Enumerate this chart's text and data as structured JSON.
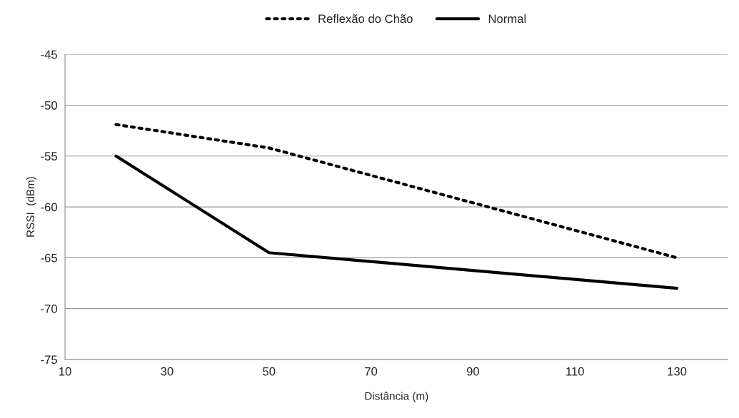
{
  "chart_data": {
    "type": "line",
    "xlabel": "Distância (m)",
    "ylabel": "RSSI  (dBm)",
    "x": [
      20,
      50,
      130
    ],
    "series": [
      {
        "name": "Reflexão do Chão",
        "color": "#000000",
        "values": [
          -51.9,
          -54.2,
          -65.0
        ],
        "line_style": "dotted"
      },
      {
        "name": "Normal",
        "color": "#000000",
        "values": [
          -55.0,
          -64.5,
          -68.0
        ],
        "line_style": "solid"
      }
    ],
    "xlim": [
      10,
      140
    ],
    "xticks": [
      10,
      30,
      50,
      70,
      90,
      110,
      130
    ],
    "ylim": [
      -75,
      -45
    ],
    "yticks": [
      -75,
      -70,
      -65,
      -60,
      -55,
      -50,
      -45
    ],
    "grid": "y",
    "legend": "top",
    "marker": "none"
  }
}
